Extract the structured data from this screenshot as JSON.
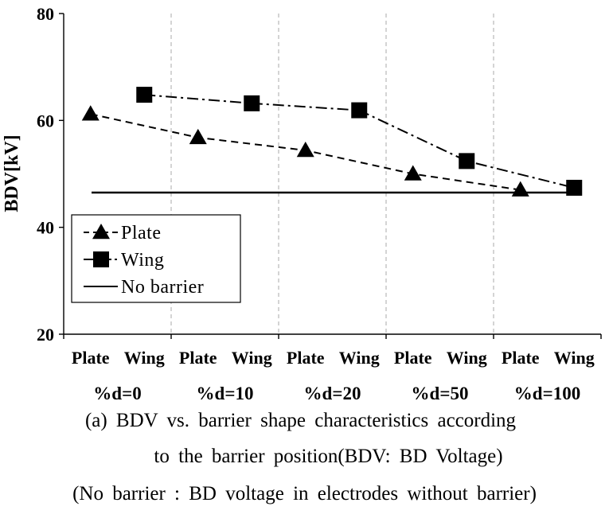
{
  "chart_data": {
    "type": "line",
    "ylabel": "BDV[kV]",
    "ylim": [
      20,
      80
    ],
    "yticks": [
      20,
      40,
      60,
      80
    ],
    "categories": [
      "Plate",
      "Wing",
      "Plate",
      "Wing",
      "Plate",
      "Wing",
      "Plate",
      "Wing",
      "Plate",
      "Wing"
    ],
    "groups": [
      "%d=0",
      "%d=10",
      "%d=20",
      "%d=50",
      "%d=100"
    ],
    "series": [
      {
        "name": "Plate",
        "marker": "triangle",
        "line": "dashed",
        "color": "#000000",
        "points": [
          {
            "cat_index": 0,
            "y": 61.2
          },
          {
            "cat_index": 2,
            "y": 56.8
          },
          {
            "cat_index": 4,
            "y": 54.4
          },
          {
            "cat_index": 6,
            "y": 50.0
          },
          {
            "cat_index": 8,
            "y": 47.0
          }
        ]
      },
      {
        "name": "Wing",
        "marker": "square",
        "line": "dash-dot",
        "color": "#000000",
        "points": [
          {
            "cat_index": 1,
            "y": 64.8
          },
          {
            "cat_index": 3,
            "y": 63.2
          },
          {
            "cat_index": 5,
            "y": 61.9
          },
          {
            "cat_index": 7,
            "y": 52.4
          },
          {
            "cat_index": 9,
            "y": 47.4
          }
        ]
      },
      {
        "name": "No barrier",
        "marker": "none",
        "line": "solid",
        "color": "#000000",
        "y": 46.5
      }
    ],
    "legend_position": "bottom-left",
    "grid": "vertical dashed separators between groups"
  },
  "captions": {
    "line1": "(a) BDV vs. barrier shape characteristics according",
    "line2": "to the barrier position(BDV: BD Voltage)",
    "line3": "(No barrier : BD voltage in electrodes without barrier)"
  }
}
